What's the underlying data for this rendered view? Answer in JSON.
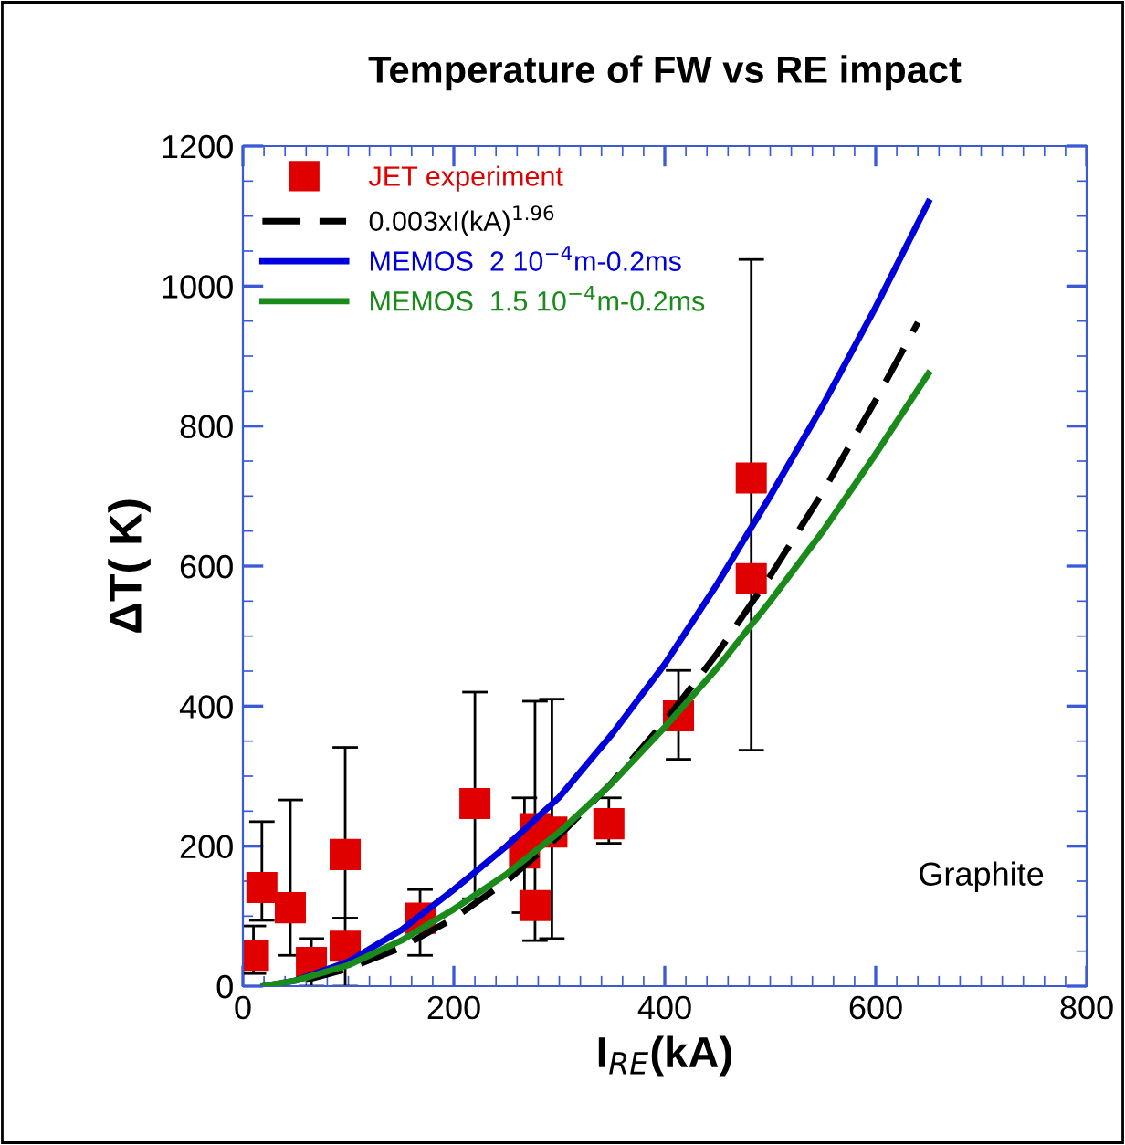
{
  "chart_data": {
    "type": "line",
    "title": "Temperature of FW vs RE impact",
    "xlabel": "I$_{RE}$(kA)",
    "ylabel": "ΔT( K)",
    "xlim": [
      0,
      800
    ],
    "xticks": [
      0,
      200,
      400,
      600,
      800
    ],
    "ylim": [
      0,
      1200
    ],
    "yticks": [
      0,
      200,
      400,
      600,
      800,
      1000,
      1200
    ],
    "grid": false,
    "legend": "top left",
    "annotations": [
      "Graphite"
    ],
    "series": [
      {
        "name": "JET experiment",
        "type": "scatter",
        "marker": "square",
        "color": "#e00000",
        "x": [
          10,
          18,
          45,
          65,
          97,
          97,
          168,
          220,
          267,
          277,
          277,
          293,
          347,
          413,
          482,
          482
        ],
        "values": [
          44,
          141,
          112,
          34,
          188,
          57,
          97,
          261,
          190,
          115,
          225,
          220,
          232,
          386,
          726,
          582
        ],
        "errors": [
          [
            18,
            86
          ],
          [
            94,
            235
          ],
          [
            44,
            266
          ],
          [
            0,
            68
          ],
          [
            97,
            341
          ],
          [
            0,
            97
          ],
          [
            44,
            138
          ],
          [
            125,
            420
          ],
          [
            105,
            269
          ],
          [
            65,
            407
          ],
          null,
          [
            68,
            410
          ],
          [
            204,
            269
          ],
          [
            324,
            451
          ],
          [
            337,
            1038
          ],
          null
        ]
      },
      {
        "name": "0.003xI(kA)$^{1.96}$",
        "line_style": "dashed",
        "color": "#000000",
        "x": [
          60,
          100,
          150,
          200,
          250,
          300,
          350,
          400,
          450,
          500,
          550,
          600,
          640
        ],
        "values": [
          9,
          25,
          55,
          97,
          150,
          215,
          291,
          378,
          476,
          586,
          706,
          837,
          948
        ]
      },
      {
        "name": "MEMOS  2 10$^{−4}$m-0.2ms",
        "line_style": "solid",
        "color": "#0000dd",
        "x": [
          20,
          50,
          100,
          150,
          200,
          250,
          300,
          350,
          400,
          450,
          500,
          550,
          600,
          650
        ],
        "values": [
          0,
          8,
          35,
          80,
          138,
          200,
          270,
          360,
          460,
          575,
          700,
          830,
          970,
          1120
        ]
      },
      {
        "name": "MEMOS  1.5 10$^{−4}$m-0.2ms",
        "line_style": "solid",
        "color": "#1a8a1a",
        "x": [
          20,
          50,
          100,
          150,
          200,
          250,
          300,
          350,
          400,
          450,
          500,
          550,
          600,
          650
        ],
        "values": [
          0,
          8,
          30,
          65,
          110,
          160,
          220,
          290,
          370,
          455,
          550,
          650,
          760,
          875
        ]
      }
    ]
  }
}
